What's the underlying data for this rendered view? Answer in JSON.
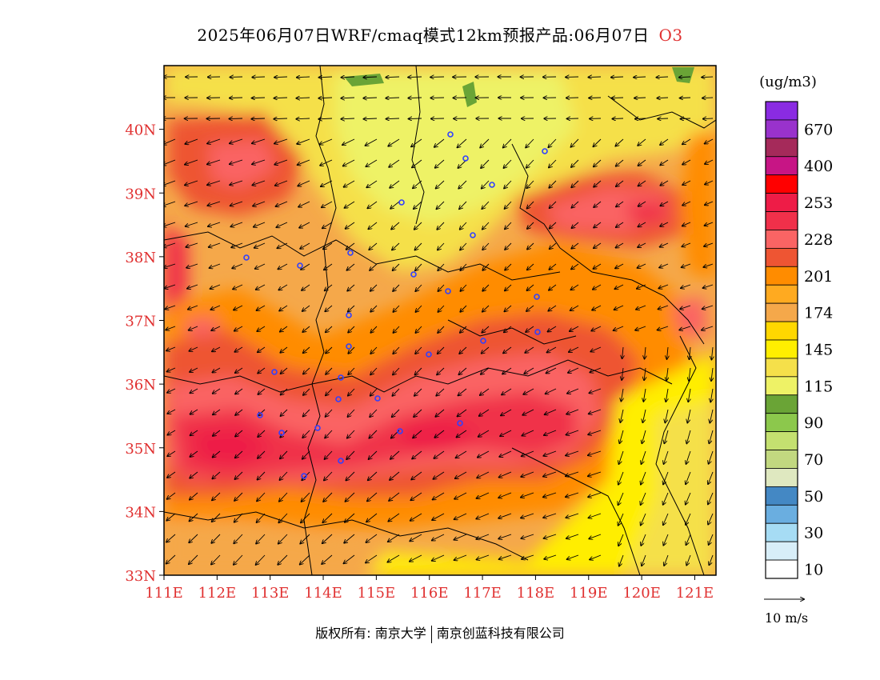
{
  "title": {
    "text": "2025年06月07日WRF/cmaq模式12km预报产品:06月07日",
    "pollutant": "O3"
  },
  "map": {
    "lat_range": [
      33,
      41
    ],
    "lon_range": [
      111,
      121.4
    ],
    "lat_ticks": [
      "33N",
      "34N",
      "35N",
      "36N",
      "37N",
      "38N",
      "39N",
      "40N"
    ],
    "lon_ticks": [
      "111E",
      "112E",
      "113E",
      "114E",
      "115E",
      "116E",
      "117E",
      "118E",
      "119E",
      "120E",
      "121E"
    ],
    "tick_color": "#e03030"
  },
  "legend": {
    "unit": "(ug/m3)",
    "levels": [
      {
        "color": "#8a2be2",
        "label": ""
      },
      {
        "color": "#9932cc",
        "label": "670"
      },
      {
        "color": "#a52a5a",
        "label": ""
      },
      {
        "color": "#c71585",
        "label": "400"
      },
      {
        "color": "#ff0000",
        "label": ""
      },
      {
        "color": "#ee1c47",
        "label": "253"
      },
      {
        "color": "#f0304a",
        "label": ""
      },
      {
        "color": "#fa6464",
        "label": "228"
      },
      {
        "color": "#ee5533",
        "label": ""
      },
      {
        "color": "#ff8c00",
        "label": "201"
      },
      {
        "color": "#ffaa20",
        "label": ""
      },
      {
        "color": "#f5a84a",
        "label": "174"
      },
      {
        "color": "#ffd700",
        "label": ""
      },
      {
        "color": "#ffee00",
        "label": "145"
      },
      {
        "color": "#f5e04a",
        "label": ""
      },
      {
        "color": "#eef266",
        "label": "115"
      },
      {
        "color": "#6aa436",
        "label": ""
      },
      {
        "color": "#8cc84c",
        "label": "90"
      },
      {
        "color": "#c4e070",
        "label": ""
      },
      {
        "color": "#c2d880",
        "label": "70"
      },
      {
        "color": "#dfe8c0",
        "label": ""
      },
      {
        "color": "#4488c4",
        "label": "50"
      },
      {
        "color": "#6aaee0",
        "label": ""
      },
      {
        "color": "#a6dcf4",
        "label": "30"
      },
      {
        "color": "#d8eef8",
        "label": ""
      },
      {
        "color": "#ffffff",
        "label": "10"
      }
    ],
    "wind_ref": "10 m/s"
  },
  "footer": {
    "copyright": "版权所有: 南京大学",
    "partner": "南京创蓝科技有限公司"
  }
}
